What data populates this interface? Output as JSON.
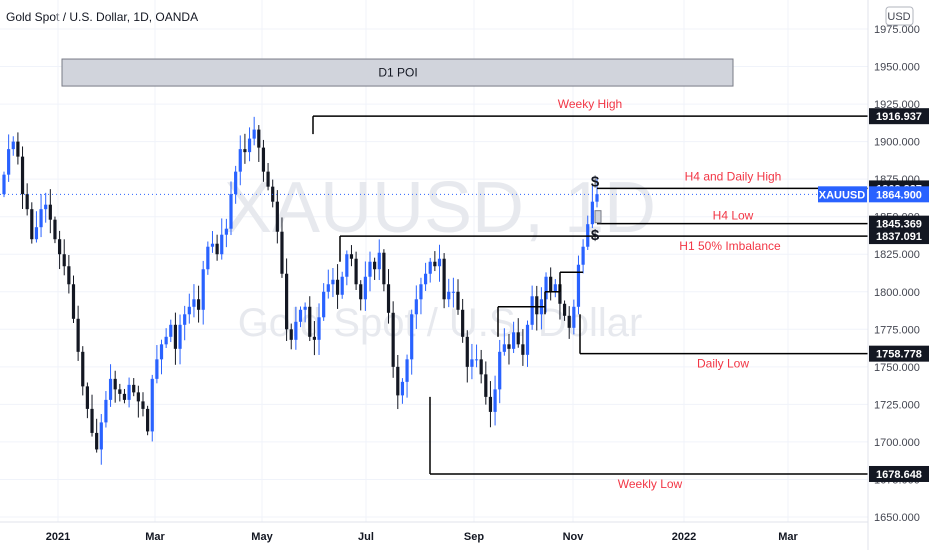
{
  "header": {
    "symbol_title": "Gold Spot / U.S. Dollar, 1D, OANDA"
  },
  "watermark": {
    "ticker": "XAUUSD, 1D",
    "description": "Gold Spot / U.S. Dollar"
  },
  "currency_button": {
    "label": "USD"
  },
  "colors": {
    "candle": "#2962ff",
    "line": "#000000",
    "label": "#f23645",
    "poi_fill": "#d1d4dc",
    "grid": "#f0f3fa"
  },
  "chart_data": {
    "type": "candlestick",
    "ylim": [
      1645,
      1980
    ],
    "y_ticks": [
      "1975.000",
      "1950.000",
      "1925.000",
      "1900.000",
      "1875.000",
      "1850.000",
      "1825.000",
      "1800.000",
      "1775.000",
      "1750.000",
      "1725.000",
      "1700.000",
      "1675.000",
      "1650.000"
    ],
    "x_ticks": [
      "2021",
      "Mar",
      "May",
      "Jul",
      "Sep",
      "Nov",
      "2022",
      "Mar"
    ],
    "zone": {
      "label": "D1 POI",
      "top": 1955,
      "bottom": 1937
    },
    "levels": [
      {
        "name": "Weeky High",
        "value": "1916.937"
      },
      {
        "name": "H4 and Daily High",
        "value": "1868.827"
      },
      {
        "name": "H4 Low",
        "value": "1845.369"
      },
      {
        "name": "H1 50% Imbalance",
        "value": "1837.091"
      },
      {
        "name": "Daily Low",
        "value": "1758.778"
      },
      {
        "name": "Weekly Low",
        "value": "1678.648"
      }
    ],
    "last_price": {
      "symbol": "XAUUSD",
      "value": "1864.900"
    },
    "markers": [
      "$",
      "$"
    ],
    "closes": [
      1878,
      1895,
      1900,
      1890,
      1865,
      1855,
      1835,
      1843,
      1855,
      1858,
      1848,
      1835,
      1825,
      1817,
      1805,
      1782,
      1760,
      1737,
      1722,
      1706,
      1695,
      1713,
      1728,
      1742,
      1735,
      1732,
      1728,
      1738,
      1733,
      1727,
      1722,
      1707,
      1742,
      1755,
      1765,
      1770,
      1778,
      1762,
      1778,
      1785,
      1790,
      1795,
      1788,
      1815,
      1830,
      1832,
      1825,
      1838,
      1842,
      1865,
      1880,
      1895,
      1893,
      1902,
      1908,
      1896,
      1880,
      1870,
      1860,
      1840,
      1812,
      1775,
      1768,
      1780,
      1788,
      1790,
      1770,
      1768,
      1783,
      1800,
      1805,
      1808,
      1798,
      1810,
      1825,
      1822,
      1805,
      1795,
      1810,
      1820,
      1815,
      1826,
      1805,
      1786,
      1750,
      1731,
      1740,
      1755,
      1785,
      1795,
      1805,
      1812,
      1820,
      1817,
      1822,
      1795,
      1800,
      1800,
      1788,
      1770,
      1750,
      1755,
      1755,
      1745,
      1730,
      1720,
      1735,
      1760,
      1765,
      1762,
      1773,
      1765,
      1758,
      1778,
      1797,
      1785,
      1795,
      1810,
      1800,
      1805,
      1792,
      1784,
      1776,
      1790,
      1818,
      1830,
      1845,
      1860,
      1865
    ]
  }
}
